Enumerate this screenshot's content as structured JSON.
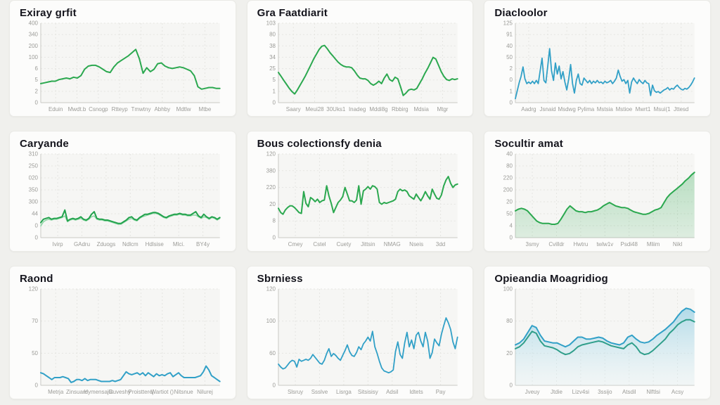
{
  "page": {
    "background": "#f0f0ed"
  },
  "palette": {
    "card_bg": "#fcfcfb",
    "plot_bg": "#f6f6f4",
    "grid": "#e5e5e1",
    "axis": "#c9c9c5",
    "tick_text": "#9b9b97",
    "title_text": "#14141c",
    "green": "#2ba84f",
    "green_light": "#8fd7a6",
    "blue": "#31a0c7",
    "teal": "#2f9e8a"
  },
  "chart_data": [
    {
      "title": "Exiray grfit",
      "type": "line",
      "y_ticks": [
        "400",
        "340",
        "200",
        "100",
        "6",
        "5",
        "2",
        "0"
      ],
      "x_ticks": [
        "Eduin",
        "Mwdt.b",
        "Csnogp",
        "Rtteyp",
        "Tmwtny",
        "Abhby",
        "Mdtlw",
        "Mtbe"
      ],
      "ylim": [
        0,
        100
      ],
      "series": [
        {
          "name": "main",
          "color": "#2ba84f",
          "width": 2,
          "values": [
            24,
            25,
            26,
            27,
            27,
            29,
            30,
            31,
            30,
            32,
            31,
            34,
            42,
            46,
            47,
            47,
            45,
            42,
            39,
            38,
            45,
            50,
            53,
            56,
            59,
            63,
            67,
            55,
            37,
            44,
            39,
            42,
            49,
            50,
            46,
            44,
            43,
            44,
            45,
            44,
            42,
            40,
            34,
            20,
            17,
            18,
            19,
            19,
            18,
            18
          ]
        }
      ]
    },
    {
      "title": "Gra Faatdiarit",
      "type": "line",
      "y_ticks": [
        "103",
        "80",
        "38",
        "34",
        "25",
        "5",
        "1",
        "0"
      ],
      "x_ticks": [
        "Saary",
        "Meui28",
        "30Uks1",
        "Inadeg",
        "Mddi8g",
        "Rbbirg",
        "Mdsia",
        "Mtgr"
      ],
      "ylim": [
        0,
        100
      ],
      "series": [
        {
          "name": "main",
          "color": "#2ba84f",
          "width": 2,
          "values": [
            38,
            33,
            28,
            23,
            18,
            14,
            11,
            16,
            22,
            28,
            34,
            41,
            48,
            55,
            61,
            67,
            71,
            72,
            68,
            63,
            59,
            55,
            51,
            48,
            46,
            45,
            45,
            44,
            40,
            35,
            31,
            30,
            30,
            28,
            24,
            22,
            24,
            27,
            24,
            31,
            36,
            29,
            27,
            32,
            30,
            20,
            9,
            12,
            16,
            17,
            16,
            18,
            24,
            30,
            37,
            43,
            50,
            57,
            55,
            47,
            39,
            33,
            29,
            28,
            30,
            29,
            30
          ]
        }
      ]
    },
    {
      "title": "Diacloolor",
      "type": "line",
      "y_ticks": [
        "125",
        "91",
        "40",
        "50",
        "2",
        "0",
        "1",
        "0"
      ],
      "x_ticks": [
        "Aadrg",
        "Jsnaid",
        "Msdwg",
        "Pylima",
        "Mstsia",
        "Mstioe",
        "Mwrt1",
        "Msui(1",
        "Jttesd"
      ],
      "ylim": [
        0,
        100
      ],
      "series": [
        {
          "name": "main",
          "color": "#31a0c7",
          "width": 1.8,
          "values": [
            5,
            15,
            25,
            33,
            45,
            30,
            24,
            26,
            24,
            27,
            24,
            28,
            24,
            40,
            56,
            28,
            25,
            46,
            68,
            40,
            28,
            50,
            36,
            46,
            30,
            39,
            26,
            16,
            30,
            48,
            24,
            12,
            28,
            36,
            24,
            22,
            31,
            28,
            25,
            28,
            24,
            27,
            25,
            28,
            25,
            26,
            24,
            27,
            25,
            26,
            28,
            24,
            27,
            31,
            41,
            33,
            27,
            29,
            24,
            28,
            12,
            26,
            31,
            27,
            24,
            29,
            26,
            24,
            28,
            25,
            24,
            9,
            22,
            15,
            13,
            14,
            12,
            14,
            16,
            17,
            19,
            16,
            18,
            17,
            20,
            22,
            19,
            17,
            16,
            18,
            17,
            19,
            22,
            26,
            31
          ]
        }
      ]
    },
    {
      "title": "Caryande",
      "type": "line",
      "y_ticks": [
        "310",
        "250",
        "020",
        "350",
        "300",
        "44",
        "0",
        "0"
      ],
      "x_ticks": [
        "Ivirp",
        "GAdru",
        "Zduogs",
        "Ndlcm",
        "Hdlsise",
        "Mlci.",
        "BY4y"
      ],
      "ylim": [
        0,
        100
      ],
      "series": [
        {
          "name": "secondary",
          "color": "#8fd7a6",
          "width": 1.6,
          "values": [
            14,
            19,
            21,
            22,
            21,
            22,
            22,
            23,
            24,
            26,
            19,
            21,
            22,
            21,
            22,
            23,
            21,
            20,
            22,
            25,
            26,
            22,
            21,
            21,
            20,
            20,
            19,
            18,
            17,
            16,
            16,
            18,
            20,
            22,
            23,
            21,
            20,
            23,
            25,
            26,
            27,
            28,
            29,
            29,
            28,
            26,
            24,
            23,
            25,
            26,
            27,
            27,
            28,
            27,
            27,
            26,
            26,
            27,
            27,
            25,
            23,
            25,
            24,
            22,
            24,
            23,
            21,
            23
          ]
        },
        {
          "name": "main",
          "color": "#22a24c",
          "width": 2,
          "values": [
            18,
            22,
            23,
            24,
            22,
            23,
            23,
            24,
            25,
            33,
            20,
            22,
            23,
            22,
            23,
            25,
            22,
            21,
            23,
            28,
            31,
            23,
            22,
            22,
            21,
            21,
            20,
            19,
            18,
            17,
            17,
            19,
            21,
            24,
            25,
            22,
            21,
            24,
            26,
            28,
            28,
            29,
            30,
            30,
            29,
            27,
            25,
            24,
            26,
            27,
            28,
            28,
            29,
            28,
            28,
            27,
            27,
            29,
            31,
            26,
            24,
            28,
            25,
            23,
            25,
            24,
            22,
            24
          ]
        }
      ]
    },
    {
      "title": "Bous colectionsfy denia",
      "type": "line",
      "y_ticks": [
        "120",
        "380",
        "220",
        "20",
        "8",
        "0"
      ],
      "x_ticks": [
        "Cmey",
        "Cstel",
        "Cuety",
        "Jittsin",
        "NMAG",
        "Nseis",
        "3dd"
      ],
      "ylim": [
        0,
        100
      ],
      "series": [
        {
          "name": "main",
          "color": "#2ba84f",
          "width": 2,
          "values": [
            35,
            30,
            28,
            33,
            36,
            38,
            38,
            36,
            33,
            30,
            29,
            55,
            41,
            37,
            48,
            46,
            43,
            46,
            42,
            44,
            45,
            62,
            50,
            41,
            30,
            36,
            42,
            45,
            49,
            60,
            52,
            44,
            44,
            42,
            45,
            62,
            40,
            56,
            58,
            61,
            58,
            62,
            61,
            58,
            42,
            40,
            42,
            41,
            42,
            43,
            44,
            46,
            55,
            58,
            56,
            57,
            55,
            50,
            48,
            46,
            52,
            48,
            44,
            49,
            55,
            50,
            46,
            58,
            52,
            47,
            46,
            51,
            62,
            69,
            73,
            65,
            60,
            63,
            64
          ]
        }
      ]
    },
    {
      "title": "Socultir amat",
      "type": "area",
      "y_ticks": [
        "40",
        "80",
        "220",
        "200",
        "20",
        "50",
        "4",
        "0"
      ],
      "x_ticks": [
        "3smy",
        "Cvilldr",
        "Hwtru",
        "twlw1v",
        "Psdi48",
        "Mliim",
        "Nikl"
      ],
      "ylim": [
        0,
        100
      ],
      "series": [
        {
          "name": "main",
          "color": "#2ba84f",
          "width": 2,
          "fill_from": "rgba(43,168,79,0.30)",
          "fill_to": "rgba(43,168,79,0.12)",
          "values": [
            32,
            34,
            35,
            34,
            32,
            28,
            24,
            20,
            18,
            17,
            17,
            17,
            16,
            16,
            17,
            22,
            28,
            34,
            38,
            35,
            32,
            31,
            31,
            30,
            31,
            31,
            32,
            33,
            35,
            38,
            40,
            42,
            40,
            38,
            37,
            36,
            36,
            35,
            33,
            31,
            30,
            29,
            28,
            28,
            29,
            31,
            33,
            34,
            36,
            42,
            48,
            52,
            55,
            58,
            61,
            64,
            68,
            71,
            75,
            78
          ]
        }
      ]
    },
    {
      "title": "Raond",
      "type": "line",
      "y_ticks": [
        "120",
        "70",
        "50",
        "0"
      ],
      "x_ticks": [
        "Metrja",
        "Zinsuard",
        "Hymensajlit",
        "Guveshy",
        "Proistterej",
        "Wartiot ()",
        "Nitsnue",
        "Nilurej"
      ],
      "ylim": [
        0,
        100
      ],
      "series": [
        {
          "name": "main",
          "color": "#31a0c7",
          "width": 2,
          "values": [
            13,
            12,
            10,
            8,
            6,
            8,
            8,
            8,
            9,
            8,
            7,
            3,
            4,
            6,
            6,
            5,
            7,
            5,
            6,
            6,
            6,
            5,
            4,
            4,
            4,
            4,
            5,
            4,
            5,
            6,
            10,
            14,
            12,
            11,
            12,
            13,
            11,
            13,
            10,
            13,
            11,
            9,
            12,
            10,
            11,
            10,
            12,
            13,
            9,
            11,
            13,
            10,
            8,
            8,
            8,
            8,
            8,
            9,
            10,
            14,
            20,
            16,
            10,
            8,
            6,
            4
          ]
        }
      ]
    },
    {
      "title": "Sbrniess",
      "type": "line",
      "y_ticks": [
        "120",
        "100",
        "60",
        "0"
      ],
      "x_ticks": [
        "Slsruy",
        "Ssslve",
        "Lisrga",
        "Sitsisisy",
        "Adsil",
        "ldtets",
        "Pay"
      ],
      "ylim": [
        0,
        100
      ],
      "series": [
        {
          "name": "main",
          "color": "#31a0c7",
          "width": 1.8,
          "values": [
            22,
            19,
            17,
            18,
            21,
            24,
            26,
            25,
            19,
            27,
            25,
            26,
            27,
            26,
            28,
            32,
            29,
            26,
            23,
            22,
            26,
            33,
            38,
            30,
            33,
            31,
            28,
            26,
            31,
            36,
            42,
            35,
            31,
            30,
            34,
            40,
            37,
            43,
            46,
            50,
            46,
            56,
            40,
            33,
            25,
            18,
            15,
            14,
            13,
            14,
            16,
            35,
            45,
            32,
            28,
            44,
            55,
            40,
            47,
            38,
            52,
            55,
            46,
            40,
            55,
            46,
            28,
            34,
            48,
            44,
            41,
            53,
            62,
            70,
            65,
            58,
            45,
            38,
            50
          ]
        }
      ]
    },
    {
      "title": "Opieandia Moagridiog",
      "type": "area",
      "y_ticks": [
        "100",
        "80",
        "20",
        "0"
      ],
      "x_ticks": [
        "Jveuy",
        "Jtdie",
        "Lizv4si",
        "3ssijo",
        "Atsdil",
        "Nlftlsi",
        "Acsy"
      ],
      "ylim": [
        0,
        100
      ],
      "series": [
        {
          "name": "band",
          "color": "#31a0c7",
          "width": 2,
          "fill_from": "rgba(120,195,222,0.55)",
          "fill_to": "rgba(226,244,250,0.25)",
          "values": [
            42,
            44,
            48,
            55,
            62,
            60,
            52,
            46,
            45,
            44,
            44,
            42,
            40,
            42,
            46,
            50,
            50,
            48,
            48,
            49,
            50,
            49,
            46,
            44,
            43,
            42,
            44,
            50,
            52,
            48,
            45,
            44,
            45,
            48,
            52,
            55,
            58,
            62,
            66,
            72,
            77,
            80,
            79,
            76
          ],
          "stroke_last": true
        },
        {
          "name": "secondary",
          "color": "#2f9e8a",
          "width": 2,
          "values": [
            38,
            40,
            44,
            50,
            56,
            54,
            46,
            41,
            40,
            39,
            37,
            34,
            32,
            33,
            36,
            40,
            42,
            43,
            44,
            45,
            46,
            45,
            43,
            41,
            40,
            39,
            38,
            42,
            44,
            40,
            34,
            32,
            33,
            36,
            40,
            44,
            48,
            54,
            58,
            63,
            66,
            68,
            68,
            66
          ]
        }
      ]
    }
  ]
}
